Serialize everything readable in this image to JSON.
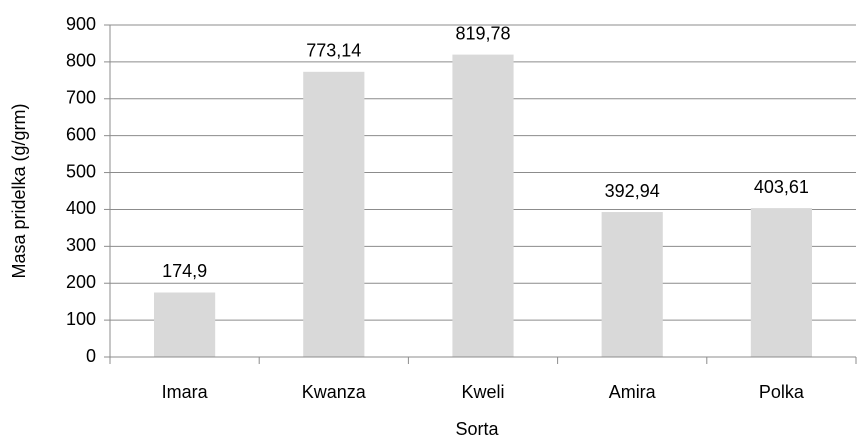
{
  "chart_data": {
    "type": "bar",
    "categories": [
      "Imara",
      "Kwanza",
      "Kweli",
      "Amira",
      "Polka"
    ],
    "values": [
      174.9,
      773.14,
      819.78,
      392.94,
      403.61
    ],
    "value_labels": [
      "174,9",
      "773,14",
      "819,78",
      "392,94",
      "403,61"
    ],
    "color": "#d9d9d9",
    "ylim": [
      0,
      900
    ],
    "yticks": [
      0,
      100,
      200,
      300,
      400,
      500,
      600,
      700,
      800,
      900
    ],
    "grid": true,
    "y_label": "Masa pridelka (g/grm)",
    "x_label": "Sorta"
  }
}
